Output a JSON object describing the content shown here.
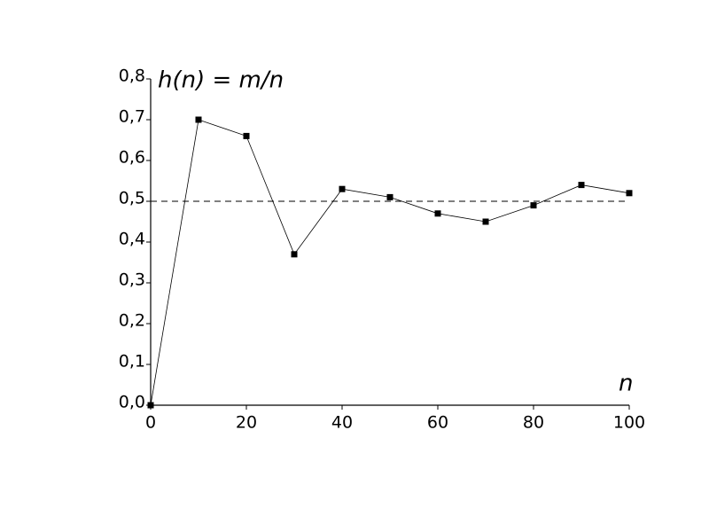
{
  "chart_data": {
    "type": "line",
    "y_label": "h(n) = m/n",
    "x_label": "n",
    "x": [
      0,
      10,
      20,
      30,
      40,
      50,
      60,
      70,
      80,
      90,
      100
    ],
    "values": [
      0,
      0.7,
      0.66,
      0.37,
      0.53,
      0.51,
      0.47,
      0.45,
      0.49,
      0.54,
      0.52
    ],
    "color": "#000000",
    "reference_line": 0.5,
    "xlim": [
      0,
      100
    ],
    "ylim": [
      0,
      0.8
    ],
    "xticks": [
      0,
      20,
      40,
      60,
      80,
      100
    ],
    "yticks": [
      {
        "value": 0,
        "label": "0,0"
      },
      {
        "value": 0.1,
        "label": "0,1"
      },
      {
        "value": 0.2,
        "label": "0,2"
      },
      {
        "value": 0.3,
        "label": "0,3"
      },
      {
        "value": 0.4,
        "label": "0,4"
      },
      {
        "value": 0.5,
        "label": "0,5"
      },
      {
        "value": 0.6,
        "label": "0,6"
      },
      {
        "value": 0.7,
        "label": "0,7"
      },
      {
        "value": 0.8,
        "label": "0,8"
      }
    ],
    "grid": false
  }
}
